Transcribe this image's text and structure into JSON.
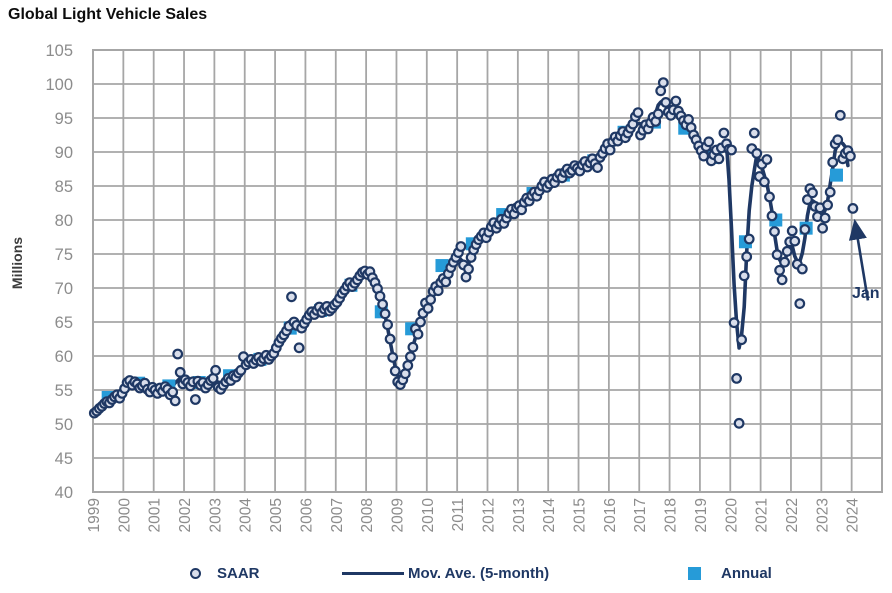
{
  "title": "Global Light Vehicle Sales",
  "y_axis_title": "Millions",
  "annotation": {
    "label": "Jan",
    "points_to_month": "2024-01",
    "points_to_value": 81.7
  },
  "legend": {
    "saar_label": "SAAR",
    "moving_average_label": "Mov. Ave. (5-month)",
    "annual_label": "Annual"
  },
  "colors": {
    "navy": "#1F3864",
    "marker_fill": "#D9DEEB",
    "annual_blue": "#269BD8",
    "gridline": "#A6A6A6",
    "axis_text": "#8C8C8C",
    "title_text": "#0d0d0d"
  },
  "chart_data": {
    "type": "line",
    "subtype": "monthly scatter + 5-month moving average line + annual squares",
    "title": "Global Light Vehicle Sales",
    "xlabel": "",
    "ylabel": "Millions",
    "ylim": [
      40,
      105
    ],
    "y_tick_step": 5,
    "xlim_years": [
      1999,
      2025
    ],
    "x_ticks": [
      1999,
      2000,
      2001,
      2002,
      2003,
      2004,
      2005,
      2006,
      2007,
      2008,
      2009,
      2010,
      2011,
      2012,
      2013,
      2014,
      2015,
      2016,
      2017,
      2018,
      2019,
      2020,
      2021,
      2022,
      2023,
      2024
    ],
    "grid": true,
    "legend_position": "bottom",
    "series": [
      {
        "name": "SAAR",
        "type": "scatter",
        "frequency": "monthly",
        "start": "1999-01",
        "end": "2024-01",
        "values": [
          51.6,
          51.9,
          52.3,
          52.6,
          53.0,
          53.3,
          53.1,
          53.6,
          54.0,
          54.3,
          53.8,
          54.5,
          55.2,
          56.1,
          56.4,
          55.7,
          56.2,
          55.9,
          55.3,
          55.6,
          56.0,
          55.1,
          54.7,
          55.4,
          55.0,
          54.5,
          55.3,
          54.8,
          55.5,
          55.1,
          54.3,
          54.7,
          53.4,
          60.3,
          57.6,
          55.9,
          56.5,
          56.1,
          55.6,
          56.2,
          53.6,
          56.3,
          55.7,
          56.1,
          55.3,
          55.8,
          56.4,
          56.7,
          57.9,
          55.4,
          55.1,
          55.7,
          56.2,
          56.7,
          56.4,
          57.1,
          56.9,
          57.5,
          57.9,
          59.9,
          58.7,
          59.1,
          59.5,
          58.9,
          59.4,
          59.8,
          59.2,
          59.6,
          60.1,
          59.5,
          60.0,
          60.4,
          61.2,
          62.0,
          62.6,
          63.1,
          63.7,
          64.4,
          68.7,
          65.0,
          64.5,
          61.2,
          64.1,
          64.8,
          65.4,
          66.0,
          66.5,
          66.1,
          66.7,
          67.2,
          66.4,
          66.9,
          67.3,
          66.6,
          67.0,
          67.5,
          67.9,
          68.5,
          69.2,
          69.7,
          70.3,
          70.8,
          70.2,
          70.7,
          71.2,
          71.8,
          72.3,
          72.5,
          72.0,
          72.4,
          71.5,
          70.8,
          69.9,
          68.8,
          67.6,
          66.2,
          64.6,
          62.5,
          59.8,
          57.8,
          56.2,
          55.8,
          56.5,
          57.4,
          58.6,
          59.9,
          61.3,
          64.0,
          63.2,
          65.0,
          66.3,
          67.8,
          67.0,
          68.3,
          69.5,
          70.2,
          69.6,
          70.8,
          71.4,
          70.9,
          72.1,
          73.0,
          73.8,
          74.5,
          75.2,
          76.1,
          73.4,
          71.6,
          72.8,
          74.5,
          75.6,
          76.4,
          77.1,
          77.6,
          78.1,
          77.4,
          78.2,
          79.0,
          79.6,
          78.8,
          79.4,
          80.1,
          79.5,
          80.3,
          81.0,
          81.6,
          80.9,
          81.8,
          82.1,
          81.5,
          82.6,
          83.2,
          82.8,
          83.6,
          84.1,
          83.5,
          84.3,
          85.0,
          85.6,
          84.8,
          85.3,
          86.0,
          85.5,
          86.3,
          86.8,
          86.2,
          87.0,
          87.5,
          86.9,
          87.3,
          88.0,
          87.6,
          87.2,
          88.1,
          88.6,
          87.8,
          88.4,
          89.0,
          88.3,
          87.7,
          89.2,
          89.8,
          90.5,
          91.2,
          90.3,
          91.5,
          92.2,
          91.6,
          92.4,
          93.0,
          92.1,
          92.8,
          93.5,
          94.1,
          95.2,
          95.8,
          92.5,
          93.2,
          94.0,
          93.4,
          94.3,
          95.1,
          94.5,
          95.6,
          99.0,
          100.2,
          97.3,
          95.9,
          95.4,
          96.2,
          97.5,
          96.0,
          95.3,
          94.6,
          94.0,
          94.8,
          93.6,
          92.5,
          91.8,
          90.9,
          90.2,
          89.4,
          90.8,
          91.5,
          88.7,
          89.6,
          90.3,
          89.0,
          90.6,
          92.8,
          91.2,
          90.4,
          90.3,
          64.9,
          56.7,
          50.1,
          62.4,
          71.8,
          74.6,
          77.2,
          90.5,
          92.8,
          89.8,
          86.4,
          88.2,
          85.6,
          88.9,
          83.4,
          80.6,
          78.3,
          74.9,
          72.6,
          71.2,
          73.8,
          75.4,
          76.8,
          78.4,
          76.9,
          73.5,
          67.7,
          72.8,
          78.6,
          83.0,
          84.6,
          84.0,
          82.0,
          80.5,
          81.8,
          78.8,
          80.3,
          82.2,
          84.1,
          88.5,
          91.2,
          91.8,
          95.4,
          89.0,
          89.8,
          90.2,
          89.4,
          81.7
        ]
      },
      {
        "name": "Mov. Ave. (5-month)",
        "type": "line",
        "derived": "5-month centered moving average of SAAR series"
      },
      {
        "name": "Annual",
        "type": "scatter",
        "marker": "square",
        "years": [
          1999,
          2000,
          2001,
          2002,
          2003,
          2004,
          2005,
          2006,
          2007,
          2008,
          2009,
          2010,
          2011,
          2012,
          2013,
          2014,
          2015,
          2016,
          2017,
          2018,
          2019,
          2020,
          2021,
          2022,
          2023
        ],
        "values": [
          53.9,
          56.0,
          55.6,
          56.1,
          57.1,
          59.5,
          64.1,
          66.7,
          70.4,
          66.5,
          64.0,
          73.3,
          76.5,
          80.8,
          83.9,
          86.6,
          88.7,
          92.9,
          94.4,
          93.5,
          89.2,
          76.8,
          80.0,
          78.8,
          86.6
        ]
      }
    ],
    "annotation": {
      "text": "Jan",
      "x": "2024-01",
      "y": 81.7
    }
  }
}
